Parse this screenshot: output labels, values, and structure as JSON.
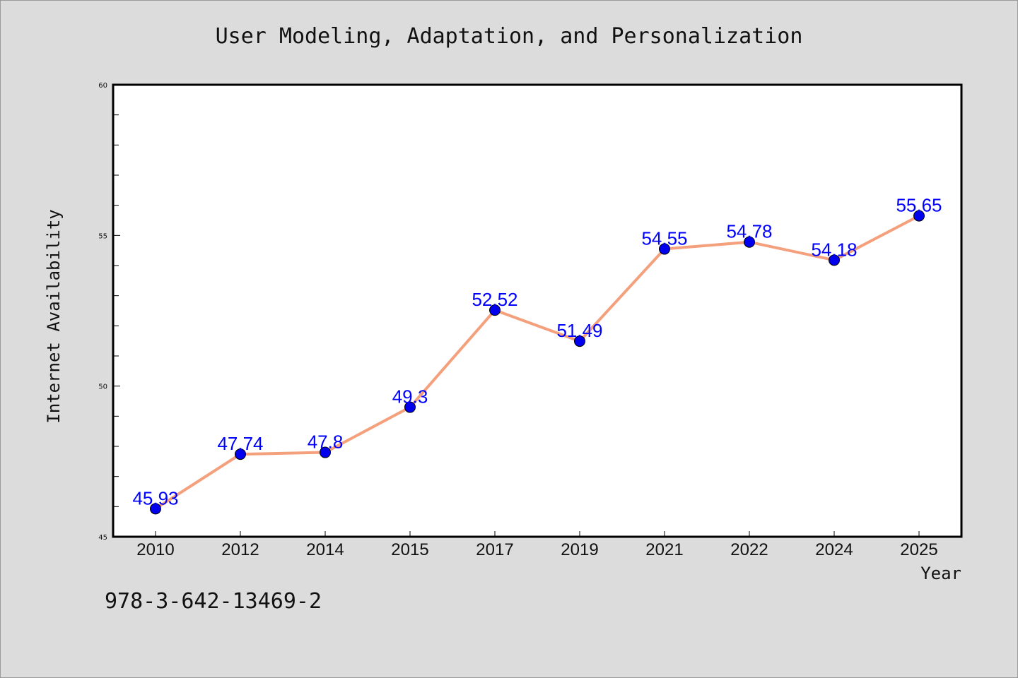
{
  "chart_data": {
    "type": "line",
    "title": "User Modeling, Adaptation, and Personalization",
    "xlabel": "Year",
    "ylabel": "Internet Availability",
    "categories": [
      "2010",
      "2012",
      "2014",
      "2015",
      "2017",
      "2019",
      "2021",
      "2022",
      "2024",
      "2025"
    ],
    "values": [
      45.93,
      47.74,
      47.8,
      49.3,
      52.52,
      51.49,
      54.55,
      54.78,
      54.18,
      55.65
    ],
    "data_labels": [
      "45.93",
      "47.74",
      "47.8",
      "49.3",
      "52.52",
      "51.49",
      "54.55",
      "54.78",
      "54.18",
      "55.65"
    ],
    "ylim": [
      45,
      60
    ],
    "y_ticks": [
      "45",
      "50",
      "55",
      "60"
    ],
    "line_color": "#f4a07c",
    "marker_color": "#0000ee",
    "label_color": "#0000ff",
    "grid": false,
    "legend": "none"
  },
  "footnote": "978-3-642-13469-2"
}
